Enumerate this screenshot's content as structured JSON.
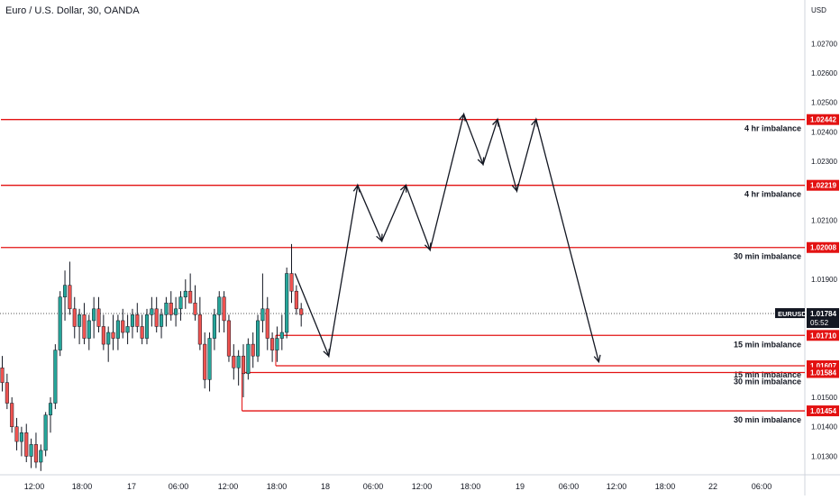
{
  "header": {
    "symbol_title": "Euro / U.S. Dollar, 30, OANDA",
    "currency": "USD"
  },
  "colors": {
    "up": "#26a69a",
    "down": "#ef5350",
    "wick": "#131722",
    "level_line": "#e31212",
    "level_label_bg": "#e31212",
    "price_label_bg": "#131722",
    "arrow": "#131722",
    "axis_text": "#131722"
  },
  "chart_data": {
    "type": "candlestick",
    "ylim": [
      1.0125,
      1.0285
    ],
    "y_ticks": [
      {
        "value": 1.013,
        "label": "1.01300"
      },
      {
        "value": 1.014,
        "label": "1.01400"
      },
      {
        "value": 1.015,
        "label": "1.01500"
      },
      {
        "value": 1.019,
        "label": "1.01900"
      },
      {
        "value": 1.021,
        "label": "1.02100"
      },
      {
        "value": 1.023,
        "label": "1.02300"
      },
      {
        "value": 1.024,
        "label": "1.02400"
      },
      {
        "value": 1.025,
        "label": "1.02500"
      },
      {
        "value": 1.026,
        "label": "1.02600"
      },
      {
        "value": 1.027,
        "label": "1.02700"
      }
    ],
    "x_ticks": [
      "12:00",
      "18:00",
      "17",
      "06:00",
      "12:00",
      "18:00",
      "18",
      "06:00",
      "12:00",
      "18:00",
      "19",
      "06:00",
      "12:00",
      "18:00",
      "22",
      "06:00"
    ],
    "last_price": {
      "symbol": "EURUSD",
      "value": "1.01784",
      "countdown": "05:52",
      "price": 1.01784
    },
    "levels": [
      {
        "price": 1.02442,
        "price_label": "1.02442",
        "label": "4 hr imbalance",
        "start_bar": 0
      },
      {
        "price": 1.02219,
        "price_label": "1.02219",
        "label": "4 hr imbalance",
        "start_bar": 0
      },
      {
        "price": 1.02008,
        "price_label": "1.02008",
        "label": "30 min imbalance",
        "start_bar": 0
      },
      {
        "price": 1.0171,
        "price_label": "1.01710",
        "label": "15 min imbalance",
        "start_bar": 57
      },
      {
        "price": 1.01607,
        "price_label": "1.01607",
        "label": "15 min imbalance",
        "start_bar": 57
      },
      {
        "price": 1.01584,
        "price_label": "1.01584",
        "label": "30 min imbalance",
        "start_bar": 50
      },
      {
        "price": 1.01454,
        "price_label": "1.01454",
        "label": "30 min imbalance",
        "start_bar": 50
      }
    ],
    "candles": [
      [
        1.016,
        1.0164,
        1.0152,
        1.0155
      ],
      [
        1.0155,
        1.0158,
        1.0146,
        1.0148
      ],
      [
        1.0148,
        1.015,
        1.0138,
        1.014
      ],
      [
        1.014,
        1.0143,
        1.0132,
        1.0135
      ],
      [
        1.0135,
        1.014,
        1.013,
        1.0138
      ],
      [
        1.0138,
        1.0141,
        1.0128,
        1.013
      ],
      [
        1.013,
        1.0136,
        1.0126,
        1.0134
      ],
      [
        1.0134,
        1.0138,
        1.0126,
        1.0128
      ],
      [
        1.0128,
        1.0134,
        1.0125,
        1.0132
      ],
      [
        1.0132,
        1.0145,
        1.013,
        1.0144
      ],
      [
        1.0144,
        1.015,
        1.0138,
        1.0148
      ],
      [
        1.0148,
        1.0168,
        1.0146,
        1.0166
      ],
      [
        1.0166,
        1.0186,
        1.0164,
        1.0184
      ],
      [
        1.0184,
        1.0193,
        1.0176,
        1.0188
      ],
      [
        1.0188,
        1.0196,
        1.0178,
        1.018
      ],
      [
        1.018,
        1.0184,
        1.017,
        1.0174
      ],
      [
        1.0174,
        1.018,
        1.0168,
        1.0178
      ],
      [
        1.0178,
        1.0182,
        1.0168,
        1.017
      ],
      [
        1.017,
        1.0178,
        1.0166,
        1.0176
      ],
      [
        1.0176,
        1.0184,
        1.017,
        1.018
      ],
      [
        1.018,
        1.0184,
        1.0172,
        1.0174
      ],
      [
        1.0174,
        1.0178,
        1.0166,
        1.0168
      ],
      [
        1.0168,
        1.0174,
        1.0162,
        1.0172
      ],
      [
        1.0172,
        1.0178,
        1.0166,
        1.017
      ],
      [
        1.017,
        1.0178,
        1.0166,
        1.0176
      ],
      [
        1.0176,
        1.018,
        1.017,
        1.0172
      ],
      [
        1.0172,
        1.0178,
        1.0168,
        1.0174
      ],
      [
        1.0174,
        1.018,
        1.017,
        1.0178
      ],
      [
        1.0178,
        1.0182,
        1.0172,
        1.0174
      ],
      [
        1.0174,
        1.0178,
        1.0168,
        1.017
      ],
      [
        1.017,
        1.018,
        1.0168,
        1.0178
      ],
      [
        1.0178,
        1.0184,
        1.0174,
        1.018
      ],
      [
        1.018,
        1.0184,
        1.0172,
        1.0174
      ],
      [
        1.0174,
        1.018,
        1.017,
        1.0178
      ],
      [
        1.0178,
        1.0184,
        1.0174,
        1.0182
      ],
      [
        1.0182,
        1.0186,
        1.0176,
        1.0178
      ],
      [
        1.0178,
        1.0184,
        1.0174,
        1.018
      ],
      [
        1.018,
        1.0186,
        1.0176,
        1.0184
      ],
      [
        1.0184,
        1.019,
        1.018,
        1.0186
      ],
      [
        1.0186,
        1.0192,
        1.0182,
        1.0182
      ],
      [
        1.0182,
        1.0188,
        1.0176,
        1.0178
      ],
      [
        1.0178,
        1.0184,
        1.0166,
        1.0168
      ],
      [
        1.0168,
        1.0172,
        1.0153,
        1.0156
      ],
      [
        1.0156,
        1.0172,
        1.0152,
        1.017
      ],
      [
        1.017,
        1.018,
        1.0166,
        1.0178
      ],
      [
        1.0178,
        1.0186,
        1.0172,
        1.0184
      ],
      [
        1.0184,
        1.0186,
        1.0172,
        1.0176
      ],
      [
        1.0176,
        1.0178,
        1.0162,
        1.0164
      ],
      [
        1.0164,
        1.0168,
        1.0156,
        1.016
      ],
      [
        1.016,
        1.0166,
        1.0154,
        1.0164
      ],
      [
        1.0164,
        1.0168,
        1.015,
        1.0158
      ],
      [
        1.0158,
        1.017,
        1.0156,
        1.0168
      ],
      [
        1.0168,
        1.0172,
        1.016,
        1.0164
      ],
      [
        1.0164,
        1.0178,
        1.0162,
        1.0176
      ],
      [
        1.0176,
        1.0192,
        1.0172,
        1.018
      ],
      [
        1.018,
        1.0184,
        1.0166,
        1.017
      ],
      [
        1.017,
        1.0172,
        1.0162,
        1.0166
      ],
      [
        1.0166,
        1.0174,
        1.0162,
        1.017
      ],
      [
        1.017,
        1.0178,
        1.0166,
        1.0172
      ],
      [
        1.0172,
        1.0194,
        1.017,
        1.0192
      ],
      [
        1.0192,
        1.0202,
        1.0182,
        1.0186
      ],
      [
        1.0186,
        1.0188,
        1.0178,
        1.018
      ],
      [
        1.018,
        1.0182,
        1.0174,
        1.0178
      ]
    ],
    "projection": [
      [
        1.0192,
        61
      ],
      [
        1.0164,
        68
      ],
      [
        1.02219,
        74
      ],
      [
        1.0203,
        79
      ],
      [
        1.02219,
        84
      ],
      [
        1.02,
        89
      ],
      [
        1.0246,
        96
      ],
      [
        1.0229,
        100
      ],
      [
        1.02442,
        103
      ],
      [
        1.022,
        107
      ],
      [
        1.02442,
        111
      ],
      [
        1.0162,
        124
      ]
    ]
  }
}
